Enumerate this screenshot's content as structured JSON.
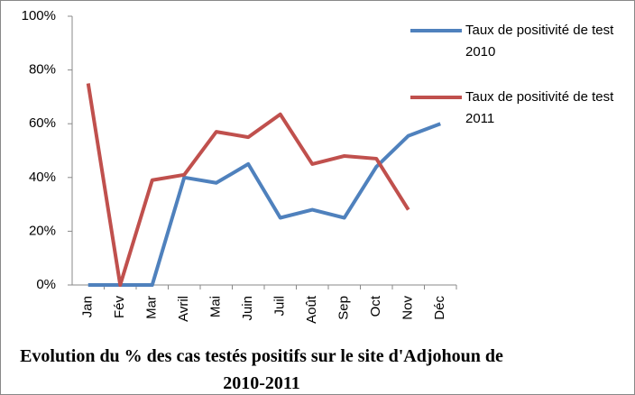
{
  "chart_data": {
    "type": "line",
    "title": "Evolution du % des cas testés positifs sur le site d'Adjohoun de 2010-2011",
    "categories": [
      "Jan",
      "Fév",
      "Mar",
      "Avril",
      "Mai",
      "Juin",
      "Juil",
      "Août",
      "Sep",
      "Oct",
      "Nov",
      "Déc"
    ],
    "series": [
      {
        "name": "Taux de positivité de test  2010",
        "color": "#4f81bd",
        "values": [
          0,
          0,
          0,
          40,
          38,
          45,
          25,
          28,
          25,
          44,
          55.5,
          60
        ]
      },
      {
        "name": "Taux de positivité de test  2011",
        "color": "#c0504d",
        "values": [
          75,
          0,
          39,
          41,
          57,
          55,
          63.5,
          45,
          48,
          47,
          28,
          null
        ]
      }
    ],
    "ylim": [
      0,
      100
    ],
    "yticks": [
      {
        "value": 0,
        "label": "0%"
      },
      {
        "value": 20,
        "label": "20%"
      },
      {
        "value": 40,
        "label": "40%"
      },
      {
        "value": 60,
        "label": "60%"
      },
      {
        "value": 80,
        "label": "80%"
      },
      {
        "value": 100,
        "label": "100%"
      }
    ],
    "grid": false,
    "legend": "right"
  }
}
